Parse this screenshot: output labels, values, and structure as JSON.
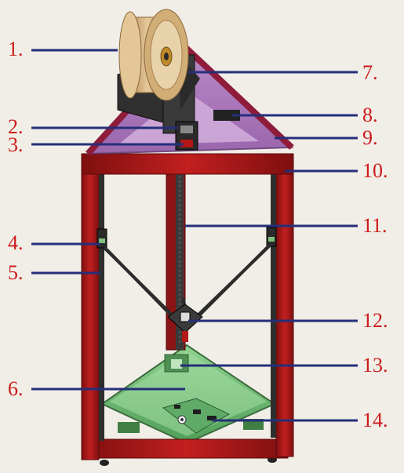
{
  "colors": {
    "background": "#f1eee7",
    "label_text": "#cc1a1a",
    "leader_line": "#252f7a",
    "frame_red": "#b31717",
    "frame_dark": "#2b2b2b",
    "top_plate": "#9a5fb0",
    "bottom_plate": "#6fbf73",
    "spool_wood": "#d9b98b",
    "spool_center": "#c49a5a"
  },
  "callouts": [
    {
      "label": "1."
    },
    {
      "label": "2."
    },
    {
      "label": "3."
    },
    {
      "label": "4."
    },
    {
      "label": "5."
    },
    {
      "label": "6."
    },
    {
      "label": "7."
    },
    {
      "label": "8."
    },
    {
      "label": "9."
    },
    {
      "label": "10."
    },
    {
      "label": "11."
    },
    {
      "label": "12."
    },
    {
      "label": "13."
    },
    {
      "label": "14."
    }
  ]
}
